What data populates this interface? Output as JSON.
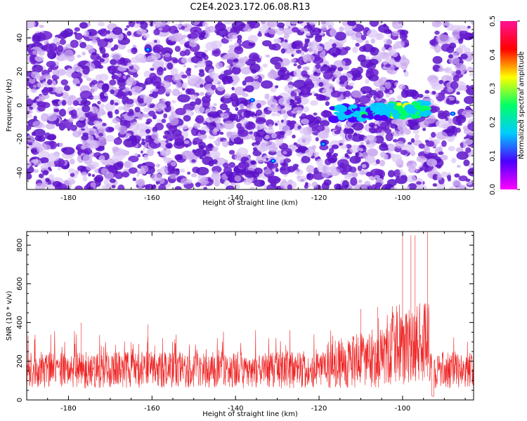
{
  "figure_title": "C2E4.2023.172.06.08.R13",
  "colors": {
    "spectrogram_low": "#ffffff",
    "spectrogram_mid": "#6a1fd0",
    "snr_line": "#ee2222",
    "colormap": [
      "#ff00ff",
      "#4b00ff",
      "#00ccff",
      "#00ff66",
      "#ffff00",
      "#ff0000",
      "#ff1493"
    ]
  },
  "chart_data": [
    {
      "type": "heatmap",
      "title": "",
      "xlabel": "Height of straight line (km)",
      "ylabel": "Frequency (Hz)",
      "xlim": [
        -190,
        -83
      ],
      "ylim": [
        -50,
        50
      ],
      "x_ticks": [
        -180,
        -160,
        -140,
        -120,
        -100
      ],
      "y_ticks": [
        -40,
        -20,
        0,
        20,
        40
      ],
      "colorbar": {
        "label": "Normalized spectral amplitude",
        "range": [
          0.0,
          0.5
        ],
        "ticks": [
          "0.0",
          "0.1",
          "0.2",
          "0.3",
          "0.4",
          "0.5"
        ]
      },
      "background_level": 0.05,
      "features": [
        {
          "description": "strong band",
          "x_range": [
            -117,
            -94
          ],
          "frequency_center": -3,
          "peak_amplitude": 0.5
        }
      ]
    },
    {
      "type": "line",
      "title": "",
      "xlabel": "Height of straight line (km)",
      "ylabel": "SNR (10 * v/v)",
      "xlim": [
        -190,
        -83
      ],
      "ylim": [
        0,
        870
      ],
      "x_ticks": [
        -180,
        -160,
        -140,
        -120,
        -100
      ],
      "y_ticks": [
        0,
        200,
        400,
        600,
        800
      ],
      "baseline_range": [
        60,
        250
      ],
      "notable_peaks": [
        {
          "x": -100,
          "y": 850
        },
        {
          "x": -98,
          "y": 850
        },
        {
          "x": -97,
          "y": 850
        },
        {
          "x": -94,
          "y": 870
        },
        {
          "x": -110,
          "y": 470
        },
        {
          "x": -106,
          "y": 480
        },
        {
          "x": -177,
          "y": 400
        },
        {
          "x": -161,
          "y": 390
        }
      ]
    }
  ]
}
